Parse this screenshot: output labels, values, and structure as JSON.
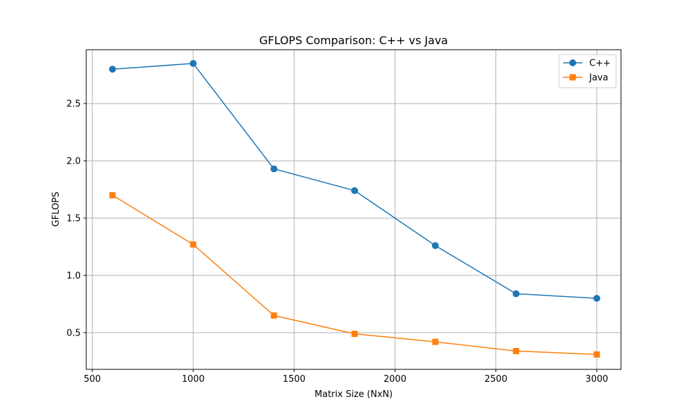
{
  "chart_data": {
    "type": "line",
    "title": "GFLOPS Comparison: C++ vs Java",
    "xlabel": "Matrix Size (NxN)",
    "ylabel": "GFLOPS",
    "x": [
      600,
      1000,
      1400,
      1800,
      2200,
      2600,
      3000
    ],
    "xlim": [
      470,
      3120
    ],
    "ylim": [
      0.18,
      2.97
    ],
    "xticks": [
      500,
      1000,
      1500,
      2000,
      2500,
      3000
    ],
    "xtick_labels": [
      "500",
      "1000",
      "1500",
      "2000",
      "2500",
      "3000"
    ],
    "yticks": [
      0.5,
      1.0,
      1.5,
      2.0,
      2.5
    ],
    "ytick_labels": [
      "0.5",
      "1.0",
      "1.5",
      "2.0",
      "2.5"
    ],
    "grid": true,
    "legend_position": "top-right",
    "series": [
      {
        "name": "C++",
        "color": "#1f77b4",
        "marker": "circle",
        "values": [
          2.8,
          2.85,
          1.93,
          1.74,
          1.26,
          0.84,
          0.8
        ]
      },
      {
        "name": "Java",
        "color": "#ff7f0e",
        "marker": "square",
        "values": [
          1.7,
          1.27,
          0.65,
          0.49,
          0.42,
          0.34,
          0.31
        ]
      }
    ]
  }
}
